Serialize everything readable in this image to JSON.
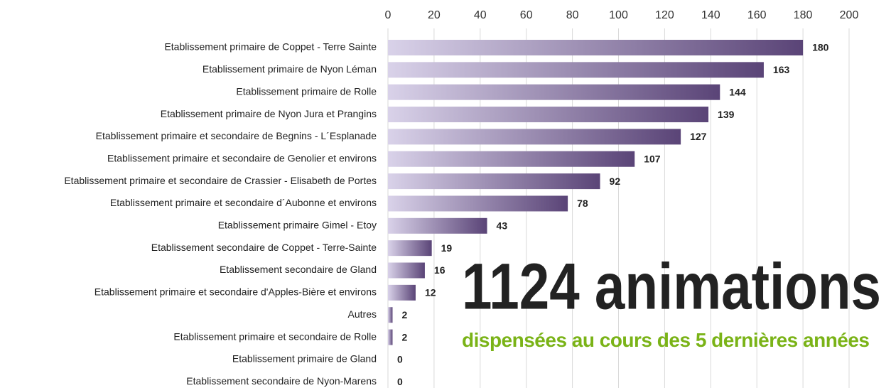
{
  "chart_data": {
    "type": "hbar",
    "categories": [
      "Etablissement primaire de Coppet - Terre Sainte",
      "Etablissement primaire de Nyon Léman",
      "Etablissement primaire de Rolle",
      "Etablissement primaire de Nyon Jura et Prangins",
      "Etablissement primaire et secondaire de Begnins - L´Esplanade",
      "Etablissement primaire et secondaire de Genolier et environs",
      "Etablissement primaire et secondaire de Crassier - Elisabeth de Portes",
      "Etablissement primaire et secondaire d´Aubonne et environs",
      "Etablissement primaire Gimel - Etoy",
      "Etablissement secondaire de Coppet - Terre-Sainte",
      "Etablissement secondaire de Gland",
      "Etablissement primaire et secondaire d'Apples-Bière et environs",
      "Autres",
      "Etablissement primaire et secondaire de Rolle",
      "Etablissement primaire de Gland",
      "Etablissement secondaire de Nyon-Marens"
    ],
    "values": [
      180,
      163,
      144,
      139,
      127,
      107,
      92,
      78,
      43,
      19,
      16,
      12,
      2,
      2,
      0,
      0
    ],
    "xlim": [
      0,
      200
    ],
    "xticks": [
      0,
      20,
      40,
      60,
      80,
      100,
      120,
      140,
      160,
      180,
      200
    ],
    "grid": true,
    "gradient": [
      "#d9d2e9",
      "#5a4477"
    ],
    "annotation": "1124 animations",
    "annotation_sub": "dispensées au cours des 5 dernières années",
    "annotation_color": "#7ab317"
  }
}
